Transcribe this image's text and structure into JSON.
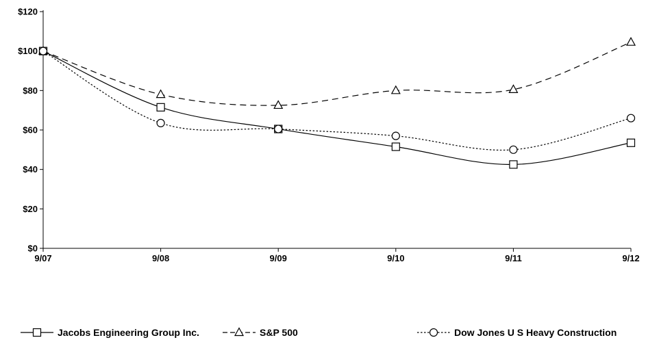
{
  "chart_data": {
    "type": "line",
    "title": "",
    "xlabel": "",
    "ylabel": "",
    "categories": [
      "9/07",
      "9/08",
      "9/09",
      "9/10",
      "9/11",
      "9/12"
    ],
    "y_ticks": [
      "$0",
      "$20",
      "$40",
      "$60",
      "$80",
      "$100",
      "$120"
    ],
    "ylim": [
      0,
      120
    ],
    "grid": false,
    "legend_position": "bottom",
    "series": [
      {
        "name": "Jacobs Engineering Group Inc.",
        "values": [
          100,
          71.5,
          60.5,
          51.5,
          42.5,
          53.5
        ],
        "marker": "square",
        "line_style": "solid",
        "color": "#000000"
      },
      {
        "name": "S&P 500",
        "values": [
          100,
          78,
          72.5,
          80,
          80.5,
          104.5
        ],
        "marker": "triangle",
        "line_style": "dashed",
        "color": "#000000"
      },
      {
        "name": "Dow Jones U S Heavy Construction",
        "values": [
          100,
          63.5,
          60.5,
          57,
          50,
          66
        ],
        "marker": "circle",
        "line_style": "dotted",
        "color": "#000000"
      }
    ]
  }
}
